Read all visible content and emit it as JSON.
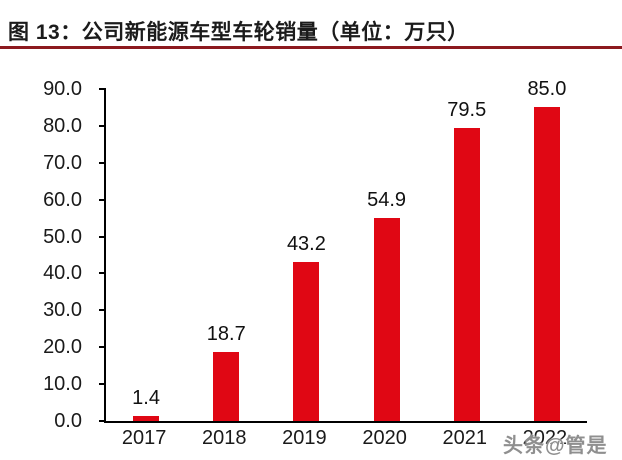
{
  "header": {
    "title": "图 13：公司新能源车型车轮销量（单位：万只）"
  },
  "watermark": "头条@管是",
  "colors": {
    "bar": "#E00714",
    "title_rule": "#8C191E",
    "axis": "#000000",
    "label": "#1a1a1a",
    "watermark": "#8f8f8f"
  },
  "chart_data": {
    "type": "bar",
    "title": "图 13：公司新能源车型车轮销量（单位：万只）",
    "unit": "万只",
    "categories": [
      "2017",
      "2018",
      "2019",
      "2020",
      "2021",
      "2022"
    ],
    "values": [
      1.4,
      18.7,
      43.2,
      54.9,
      79.5,
      85.0
    ],
    "data_labels": [
      "1.4",
      "18.7",
      "43.2",
      "54.9",
      "79.5",
      "85.0"
    ],
    "xlabel": "",
    "ylabel": "",
    "ylim": [
      0,
      90
    ],
    "ytick_interval": 10,
    "ytick_labels": [
      "0.0",
      "10.0",
      "20.0",
      "30.0",
      "40.0",
      "50.0",
      "60.0",
      "70.0",
      "80.0",
      "90.0"
    ],
    "grid": false,
    "legend": false,
    "bar_color": "#E00714"
  }
}
